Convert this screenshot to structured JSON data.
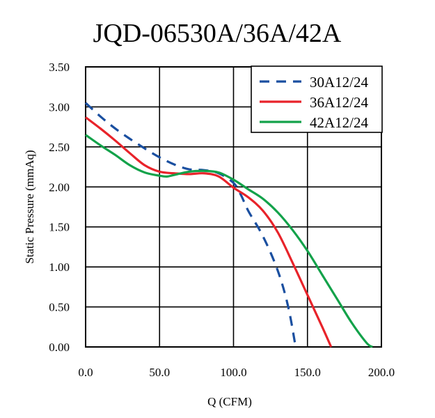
{
  "chart_data": {
    "type": "line",
    "title": "JQD-06530A/36A/42A",
    "xlabel": "Q (CFM)",
    "ylabel": "Static Pressure (mmAq)",
    "xlim": [
      0,
      200
    ],
    "ylim": [
      0,
      3.5
    ],
    "x_ticks": [
      "0.0",
      "50.0",
      "100.0",
      "150.0",
      "200.0"
    ],
    "y_ticks": [
      "0.00",
      "0.50",
      "1.00",
      "1.50",
      "2.00",
      "2.50",
      "3.00",
      "3.50"
    ],
    "grid": true,
    "legend_position": "top-right",
    "series": [
      {
        "name": "30A12/24",
        "color": "#1a4fa0",
        "dash": true,
        "points": [
          [
            0,
            3.05
          ],
          [
            10,
            2.88
          ],
          [
            20,
            2.73
          ],
          [
            30,
            2.6
          ],
          [
            40,
            2.48
          ],
          [
            50,
            2.37
          ],
          [
            60,
            2.28
          ],
          [
            70,
            2.22
          ],
          [
            80,
            2.21
          ],
          [
            90,
            2.17
          ],
          [
            100,
            2.05
          ],
          [
            105,
            1.9
          ],
          [
            110,
            1.7
          ],
          [
            120,
            1.38
          ],
          [
            130,
            0.95
          ],
          [
            137,
            0.5
          ],
          [
            142,
            0.0
          ]
        ]
      },
      {
        "name": "36A12/24",
        "color": "#e8232a",
        "dash": false,
        "points": [
          [
            0,
            2.87
          ],
          [
            10,
            2.73
          ],
          [
            20,
            2.58
          ],
          [
            30,
            2.42
          ],
          [
            40,
            2.27
          ],
          [
            50,
            2.19
          ],
          [
            60,
            2.17
          ],
          [
            70,
            2.16
          ],
          [
            80,
            2.17
          ],
          [
            90,
            2.13
          ],
          [
            100,
            1.99
          ],
          [
            110,
            1.87
          ],
          [
            120,
            1.7
          ],
          [
            130,
            1.43
          ],
          [
            140,
            1.05
          ],
          [
            150,
            0.65
          ],
          [
            160,
            0.25
          ],
          [
            166,
            0.0
          ]
        ]
      },
      {
        "name": "42A12/24",
        "color": "#13a24a",
        "dash": false,
        "points": [
          [
            0,
            2.65
          ],
          [
            10,
            2.52
          ],
          [
            20,
            2.4
          ],
          [
            30,
            2.27
          ],
          [
            40,
            2.18
          ],
          [
            50,
            2.14
          ],
          [
            55,
            2.13
          ],
          [
            60,
            2.15
          ],
          [
            70,
            2.19
          ],
          [
            80,
            2.2
          ],
          [
            90,
            2.18
          ],
          [
            100,
            2.09
          ],
          [
            110,
            1.97
          ],
          [
            120,
            1.85
          ],
          [
            130,
            1.68
          ],
          [
            140,
            1.46
          ],
          [
            150,
            1.2
          ],
          [
            160,
            0.9
          ],
          [
            170,
            0.6
          ],
          [
            180,
            0.3
          ],
          [
            190,
            0.05
          ],
          [
            194,
            0.0
          ]
        ]
      }
    ]
  }
}
